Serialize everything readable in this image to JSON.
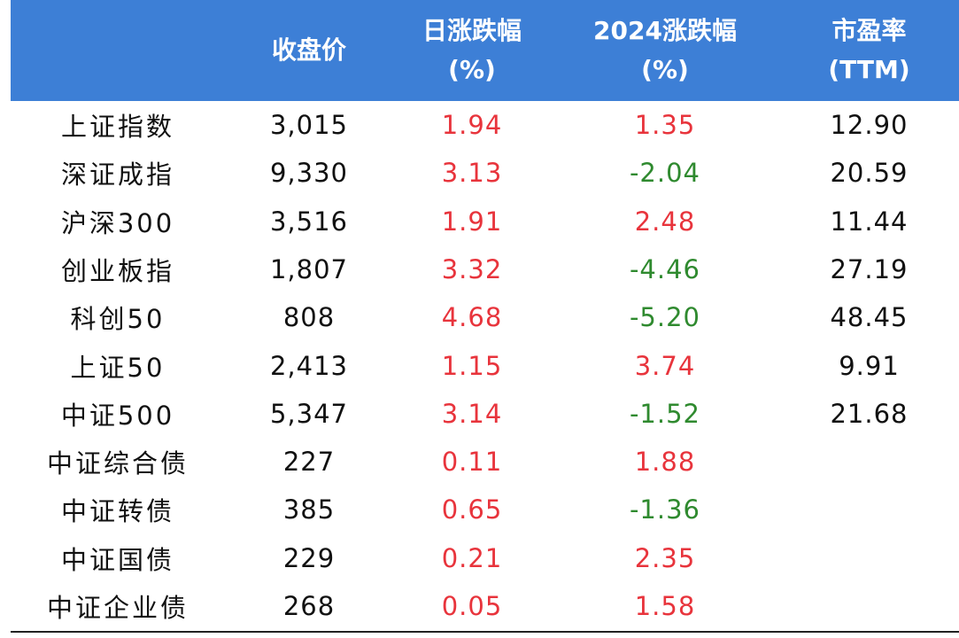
{
  "colors": {
    "header_bg": "#3d7fd6",
    "header_text": "#ffffff",
    "up": "#e8343c",
    "down": "#2f8a2f",
    "neutral": "#111111"
  },
  "headers": {
    "name": "",
    "close": "收盘价",
    "daily_change": "日涨跌幅\n(%)",
    "ytd_change": "2024涨跌幅\n(%)",
    "pe": "市盈率\n(TTM)"
  },
  "rows": [
    {
      "name": "上证指数",
      "close": "3,015",
      "daily": "1.94",
      "daily_dir": "up",
      "ytd": "1.35",
      "ytd_dir": "up",
      "pe": "12.90"
    },
    {
      "name": "深证成指",
      "close": "9,330",
      "daily": "3.13",
      "daily_dir": "up",
      "ytd": "-2.04",
      "ytd_dir": "down",
      "pe": "20.59"
    },
    {
      "name": "沪深300",
      "close": "3,516",
      "daily": "1.91",
      "daily_dir": "up",
      "ytd": "2.48",
      "ytd_dir": "up",
      "pe": "11.44"
    },
    {
      "name": "创业板指",
      "close": "1,807",
      "daily": "3.32",
      "daily_dir": "up",
      "ytd": "-4.46",
      "ytd_dir": "down",
      "pe": "27.19"
    },
    {
      "name": "科创50",
      "close": "808",
      "daily": "4.68",
      "daily_dir": "up",
      "ytd": "-5.20",
      "ytd_dir": "down",
      "pe": "48.45"
    },
    {
      "name": "上证50",
      "close": "2,413",
      "daily": "1.15",
      "daily_dir": "up",
      "ytd": "3.74",
      "ytd_dir": "up",
      "pe": "9.91"
    },
    {
      "name": "中证500",
      "close": "5,347",
      "daily": "3.14",
      "daily_dir": "up",
      "ytd": "-1.52",
      "ytd_dir": "down",
      "pe": "21.68"
    },
    {
      "name": "中证综合债",
      "close": "227",
      "daily": "0.11",
      "daily_dir": "up",
      "ytd": "1.88",
      "ytd_dir": "up",
      "pe": ""
    },
    {
      "name": "中证转债",
      "close": "385",
      "daily": "0.65",
      "daily_dir": "up",
      "ytd": "-1.36",
      "ytd_dir": "down",
      "pe": ""
    },
    {
      "name": "中证国债",
      "close": "229",
      "daily": "0.21",
      "daily_dir": "up",
      "ytd": "2.35",
      "ytd_dir": "up",
      "pe": ""
    },
    {
      "name": "中证企业债",
      "close": "268",
      "daily": "0.05",
      "daily_dir": "up",
      "ytd": "1.58",
      "ytd_dir": "up",
      "pe": ""
    }
  ]
}
